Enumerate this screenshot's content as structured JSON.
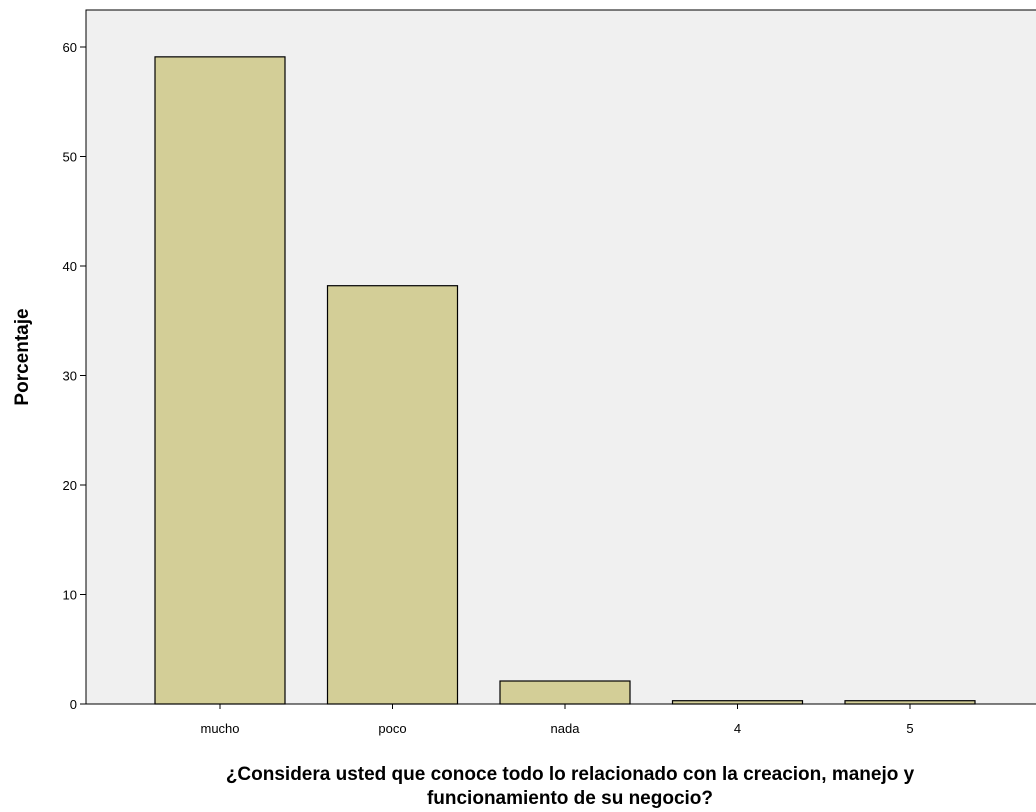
{
  "chart_data": {
    "type": "bar",
    "title": "",
    "categories": [
      "mucho",
      "poco",
      "nada",
      "4",
      "5"
    ],
    "values": [
      59.1,
      38.2,
      2.1,
      0.3,
      0.3
    ],
    "xlabel_line1": "¿Considera usted que conoce todo lo relacionado con la creacion, manejo y",
    "xlabel_line2": "funcionamiento de su negocio?",
    "ylabel": "Porcentaje",
    "ylim": [
      0,
      64
    ],
    "yticks": [
      0,
      10,
      20,
      30,
      40,
      50,
      60
    ],
    "grid": false,
    "colors": {
      "bar": "#d3ce97",
      "plot_bg": "#f0f0f0",
      "bar_edge": "#000000"
    }
  }
}
